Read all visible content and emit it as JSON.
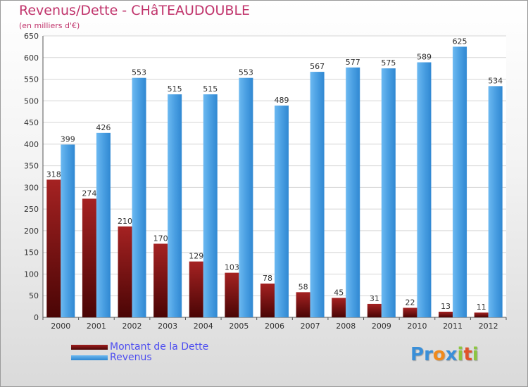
{
  "chart_data": {
    "type": "bar",
    "title": "Revenus/Dette - CHâTEAUDOUBLE",
    "subtitle": "(en milliers d'€)",
    "categories": [
      "2000",
      "2001",
      "2002",
      "2003",
      "2004",
      "2005",
      "2006",
      "2007",
      "2008",
      "2009",
      "2010",
      "2011",
      "2012"
    ],
    "series": [
      {
        "name": "Montant de la Dette",
        "color": "#7a1515",
        "values": [
          318,
          274,
          210,
          170,
          129,
          103,
          78,
          58,
          45,
          31,
          22,
          13,
          11
        ]
      },
      {
        "name": "Revenus",
        "color": "#4a9fe2",
        "values": [
          399,
          426,
          553,
          515,
          515,
          553,
          489,
          567,
          577,
          575,
          589,
          625,
          534
        ]
      }
    ],
    "ylim": [
      0,
      650
    ],
    "yticks": [
      0,
      50,
      100,
      150,
      200,
      250,
      300,
      350,
      400,
      450,
      500,
      550,
      600,
      650
    ],
    "grid": true,
    "legend": "bottom-left"
  },
  "logo": {
    "letters": [
      {
        "ch": "P",
        "color": "#3a8fd8"
      },
      {
        "ch": "r",
        "color": "#3a8fd8"
      },
      {
        "ch": "o",
        "color": "#f08a1c"
      },
      {
        "ch": "x",
        "color": "#3a8fd8"
      },
      {
        "ch": "i",
        "color": "#8cc63f"
      },
      {
        "ch": "t",
        "color": "#e0542a"
      },
      {
        "ch": "i",
        "color": "#8cc63f"
      }
    ]
  }
}
